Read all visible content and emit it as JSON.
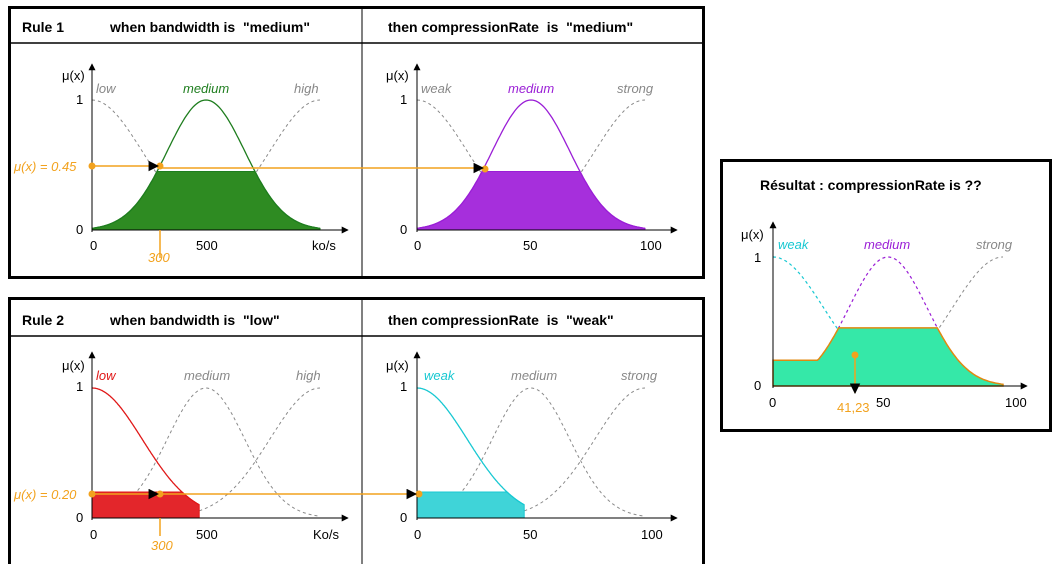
{
  "colors": {
    "medium_green": "#1e7d1e",
    "medium_green_fill": "#2e8b22",
    "purple": "#9a1ed6",
    "purple_fill": "#a62fdc",
    "red": "#e01818",
    "red_fill": "#e3262b",
    "cyan": "#18c8d2",
    "cyan_fill": "#3fd4d8",
    "result_fill": "#35e8a8",
    "orange": "#f2a21e",
    "orange_edge": "#e08a10",
    "gray_dash": "#8a8a8a"
  },
  "icons": {
    "marker": "orange-dot-icon",
    "arrow": "arrow-head-icon"
  },
  "rule1": {
    "title": "Rule 1",
    "condition": "when bandwidth is  \"medium\"",
    "consequence": "then compressionRate  is  \"medium\"",
    "left": {
      "ylabel": "μ(x)",
      "y1": "1",
      "y0": "0",
      "sets": [
        "low",
        "medium",
        "high"
      ],
      "ticks": [
        "0",
        "500"
      ],
      "unit": "ko/s",
      "input_value": "300",
      "mu_label": "μ(x) = 0.45",
      "mu": 0.45,
      "active": "medium"
    },
    "right": {
      "ylabel": "μ(x)",
      "y1": "1",
      "y0": "0",
      "sets": [
        "weak",
        "medium",
        "strong"
      ],
      "ticks": [
        "0",
        "50",
        "100"
      ],
      "active": "medium"
    }
  },
  "rule2": {
    "title": "Rule 2",
    "condition": "when bandwidth is  \"low\"",
    "consequence": "then compressionRate  is  \"weak\"",
    "left": {
      "ylabel": "μ(x)",
      "y1": "1",
      "y0": "0",
      "sets": [
        "low",
        "medium",
        "high"
      ],
      "ticks": [
        "0",
        "500"
      ],
      "unit": "Ko/s",
      "input_value": "300",
      "mu_label": "μ(x) = 0.20",
      "mu": 0.2,
      "active": "low"
    },
    "right": {
      "ylabel": "μ(x)",
      "y1": "1",
      "y0": "0",
      "sets": [
        "weak",
        "medium",
        "strong"
      ],
      "ticks": [
        "0",
        "50",
        "100"
      ],
      "active": "weak"
    }
  },
  "result": {
    "title": "Résultat : compressionRate is ??",
    "ylabel": "μ(x)",
    "y1": "1",
    "y0": "0",
    "sets": [
      "weak",
      "medium",
      "strong"
    ],
    "ticks": [
      "0",
      "50",
      "100"
    ],
    "centroid_label": "41,23",
    "centroid": 41.23
  }
}
